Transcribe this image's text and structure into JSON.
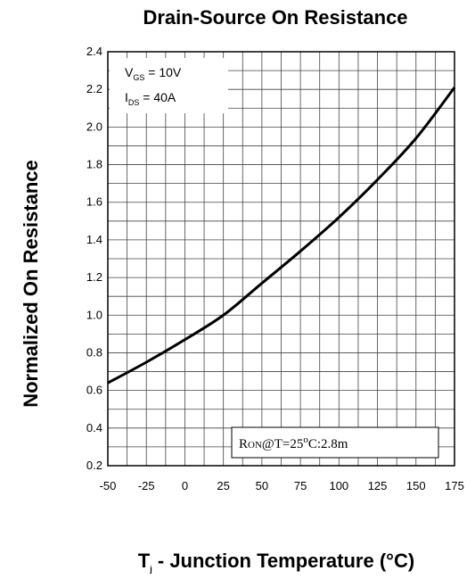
{
  "chart_data": {
    "type": "line",
    "title": "Drain-Source On Resistance",
    "ylabel": "Normalized On Resistance",
    "xlabel": {
      "prefix": "T",
      "sub": "j",
      "rest": " - Junction Temperature (°C)"
    },
    "xlim": [
      -50,
      175
    ],
    "ylim": [
      0.2,
      2.4
    ],
    "x_ticks": [
      -50,
      -25,
      0,
      25,
      50,
      75,
      100,
      125,
      150,
      175
    ],
    "y_ticks": [
      "0.2",
      "0.4",
      "0.6",
      "0.8",
      "1.0",
      "1.2",
      "1.4",
      "1.6",
      "1.8",
      "2.0",
      "2.2",
      "2.4"
    ],
    "grid": true,
    "series": [
      {
        "x": [
          -50,
          -25,
          0,
          25,
          50,
          75,
          100,
          125,
          150,
          175
        ],
        "y": [
          0.64,
          0.75,
          0.87,
          1.0,
          1.17,
          1.34,
          1.52,
          1.72,
          1.94,
          2.21
        ]
      }
    ],
    "annotations": {
      "conditions": [
        {
          "main": "V",
          "sub": "GS",
          "value": " = 10V"
        },
        {
          "main": "I",
          "sub": "DS",
          "value": " = 40A"
        }
      ],
      "note": {
        "prefix": "R",
        "small": "ON",
        "text": "@T=25",
        "sup": "o",
        "suffix": "C:2.8m"
      }
    }
  }
}
